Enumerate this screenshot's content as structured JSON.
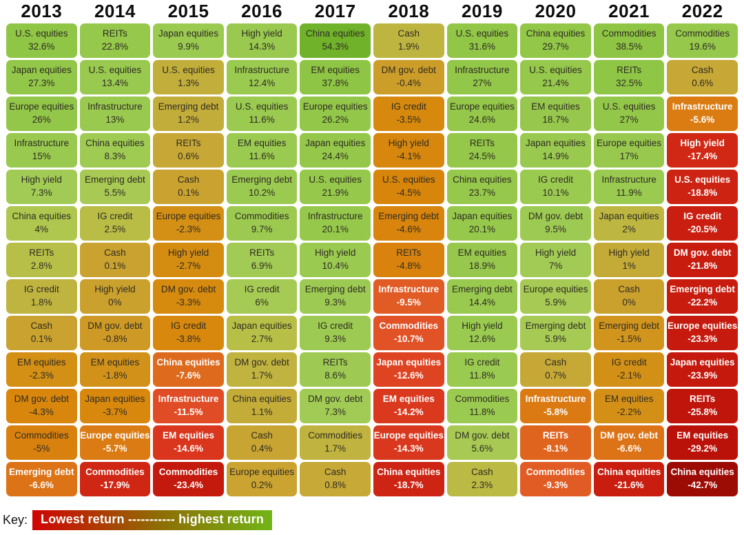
{
  "key": {
    "label": "Key:",
    "bar_text": "Lowest return ----------- highest return",
    "gradient": [
      "#d00404",
      "#8f6c04",
      "#72b517"
    ]
  },
  "chart_data": {
    "type": "heatmap",
    "legend": "red = lowest return, green = highest return",
    "columns": [
      {
        "year": "2013",
        "cells": [
          {
            "label": "U.S. equities",
            "value": 32.6,
            "display": "32.6%"
          },
          {
            "label": "Japan equities",
            "value": 27.3,
            "display": "27.3%"
          },
          {
            "label": "Europe equities",
            "value": 26,
            "display": "26%"
          },
          {
            "label": "Infrastructure",
            "value": 15,
            "display": "15%"
          },
          {
            "label": "High yield",
            "value": 7.3,
            "display": "7.3%"
          },
          {
            "label": "China equities",
            "value": 4,
            "display": "4%"
          },
          {
            "label": "REITs",
            "value": 2.8,
            "display": "2.8%"
          },
          {
            "label": "IG credit",
            "value": 1.8,
            "display": "1.8%"
          },
          {
            "label": "Cash",
            "value": 0.1,
            "display": "0.1%"
          },
          {
            "label": "EM equities",
            "value": -2.3,
            "display": "-2.3%"
          },
          {
            "label": "DM gov. debt",
            "value": -4.3,
            "display": "-4.3%"
          },
          {
            "label": "Commodities",
            "value": -5,
            "display": "-5%"
          },
          {
            "label": "Emerging debt",
            "value": -6.6,
            "display": "-6.6%"
          }
        ]
      },
      {
        "year": "2014",
        "cells": [
          {
            "label": "REITs",
            "value": 22.8,
            "display": "22.8%"
          },
          {
            "label": "U.S. equities",
            "value": 13.4,
            "display": "13.4%"
          },
          {
            "label": "Infrastructure",
            "value": 13,
            "display": "13%"
          },
          {
            "label": "China equities",
            "value": 8.3,
            "display": "8.3%"
          },
          {
            "label": "Emerging debt",
            "value": 5.5,
            "display": "5.5%"
          },
          {
            "label": "IG credit",
            "value": 2.5,
            "display": "2.5%"
          },
          {
            "label": "Cash",
            "value": 0.1,
            "display": "0.1%"
          },
          {
            "label": "High yield",
            "value": 0,
            "display": "0%"
          },
          {
            "label": "DM gov. debt",
            "value": -0.8,
            "display": "-0.8%"
          },
          {
            "label": "EM equities",
            "value": -1.8,
            "display": "-1.8%"
          },
          {
            "label": "Japan equities",
            "value": -3.7,
            "display": "-3.7%"
          },
          {
            "label": "Europe equities",
            "value": -5.7,
            "display": "-5.7%"
          },
          {
            "label": "Commodities",
            "value": -17.9,
            "display": "-17.9%"
          }
        ]
      },
      {
        "year": "2015",
        "cells": [
          {
            "label": "Japan equities",
            "value": 9.9,
            "display": "9.9%"
          },
          {
            "label": "U.S. equities",
            "value": 1.3,
            "display": "1.3%"
          },
          {
            "label": "Emerging debt",
            "value": 1.2,
            "display": "1.2%"
          },
          {
            "label": "REITs",
            "value": 0.6,
            "display": "0.6%"
          },
          {
            "label": "Cash",
            "value": 0.1,
            "display": "0.1%"
          },
          {
            "label": "Europe equities",
            "value": -2.3,
            "display": "-2.3%"
          },
          {
            "label": "High yield",
            "value": -2.7,
            "display": "-2.7%"
          },
          {
            "label": "DM gov. debt",
            "value": -3.3,
            "display": "-3.3%"
          },
          {
            "label": "IG credit",
            "value": -3.8,
            "display": "-3.8%"
          },
          {
            "label": "China equities",
            "value": -7.6,
            "display": "-7.6%"
          },
          {
            "label": "Infrastructure",
            "value": -11.5,
            "display": "-11.5%"
          },
          {
            "label": "EM equities",
            "value": -14.6,
            "display": "-14.6%"
          },
          {
            "label": "Commodities",
            "value": -23.4,
            "display": "-23.4%"
          }
        ]
      },
      {
        "year": "2016",
        "cells": [
          {
            "label": "High yield",
            "value": 14.3,
            "display": "14.3%"
          },
          {
            "label": "Infrastructure",
            "value": 12.4,
            "display": "12.4%"
          },
          {
            "label": "U.S. equities",
            "value": 11.6,
            "display": "11.6%"
          },
          {
            "label": "EM equities",
            "value": 11.6,
            "display": "11.6%"
          },
          {
            "label": "Emerging debt",
            "value": 10.2,
            "display": "10.2%"
          },
          {
            "label": "Commodities",
            "value": 9.7,
            "display": "9.7%"
          },
          {
            "label": "REITs",
            "value": 6.9,
            "display": "6.9%"
          },
          {
            "label": "IG credit",
            "value": 6,
            "display": "6%"
          },
          {
            "label": "Japan equities",
            "value": 2.7,
            "display": "2.7%"
          },
          {
            "label": "DM gov. debt",
            "value": 1.7,
            "display": "1.7%"
          },
          {
            "label": "China equities",
            "value": 1.1,
            "display": "1.1%"
          },
          {
            "label": "Cash",
            "value": 0.4,
            "display": "0.4%"
          },
          {
            "label": "Europe equities",
            "value": 0.2,
            "display": "0.2%"
          }
        ]
      },
      {
        "year": "2017",
        "cells": [
          {
            "label": "China equities",
            "value": 54.3,
            "display": "54.3%"
          },
          {
            "label": "EM equities",
            "value": 37.8,
            "display": "37.8%"
          },
          {
            "label": "Europe equities",
            "value": 26.2,
            "display": "26.2%"
          },
          {
            "label": "Japan equities",
            "value": 24.4,
            "display": "24.4%"
          },
          {
            "label": "U.S. equities",
            "value": 21.9,
            "display": "21.9%"
          },
          {
            "label": "Infrastructure",
            "value": 20.1,
            "display": "20.1%"
          },
          {
            "label": "High yield",
            "value": 10.4,
            "display": "10.4%"
          },
          {
            "label": "Emerging debt",
            "value": 9.3,
            "display": "9.3%"
          },
          {
            "label": "IG credit",
            "value": 9.3,
            "display": "9.3%"
          },
          {
            "label": "REITs",
            "value": 8.6,
            "display": "8.6%"
          },
          {
            "label": "DM gov. debt",
            "value": 7.3,
            "display": "7.3%"
          },
          {
            "label": "Commodities",
            "value": 1.7,
            "display": "1.7%"
          },
          {
            "label": "Cash",
            "value": 0.8,
            "display": "0.8%"
          }
        ]
      },
      {
        "year": "2018",
        "cells": [
          {
            "label": "Cash",
            "value": 1.9,
            "display": "1.9%"
          },
          {
            "label": "DM gov. debt",
            "value": -0.4,
            "display": "-0.4%"
          },
          {
            "label": "IG credit",
            "value": -3.5,
            "display": "-3.5%"
          },
          {
            "label": "High yield",
            "value": -4.1,
            "display": "-4.1%"
          },
          {
            "label": "U.S. equities",
            "value": -4.5,
            "display": "-4.5%"
          },
          {
            "label": "Emerging debt",
            "value": -4.6,
            "display": "-4.6%"
          },
          {
            "label": "REITs",
            "value": -4.8,
            "display": "-4.8%"
          },
          {
            "label": "Infrastructure",
            "value": -9.5,
            "display": "-9.5%"
          },
          {
            "label": "Commodities",
            "value": -10.7,
            "display": "-10.7%"
          },
          {
            "label": "Japan equities",
            "value": -12.6,
            "display": "-12.6%"
          },
          {
            "label": "EM equities",
            "value": -14.2,
            "display": "-14.2%"
          },
          {
            "label": "Europe equities",
            "value": -14.3,
            "display": "-14.3%"
          },
          {
            "label": "China equities",
            "value": -18.7,
            "display": "-18.7%"
          }
        ]
      },
      {
        "year": "2019",
        "cells": [
          {
            "label": "U.S. equities",
            "value": 31.6,
            "display": "31.6%"
          },
          {
            "label": "Infrastructure",
            "value": 27,
            "display": "27%"
          },
          {
            "label": "Europe equities",
            "value": 24.6,
            "display": "24.6%"
          },
          {
            "label": "REITs",
            "value": 24.5,
            "display": "24.5%"
          },
          {
            "label": "China equities",
            "value": 23.7,
            "display": "23.7%"
          },
          {
            "label": "Japan equities",
            "value": 20.1,
            "display": "20.1%"
          },
          {
            "label": "EM equities",
            "value": 18.9,
            "display": "18.9%"
          },
          {
            "label": "Emerging debt",
            "value": 14.4,
            "display": "14.4%"
          },
          {
            "label": "High yield",
            "value": 12.6,
            "display": "12.6%"
          },
          {
            "label": "IG credit",
            "value": 11.8,
            "display": "11.8%"
          },
          {
            "label": "Commodities",
            "value": 11.8,
            "display": "11.8%"
          },
          {
            "label": "DM gov. debt",
            "value": 5.6,
            "display": "5.6%"
          },
          {
            "label": "Cash",
            "value": 2.3,
            "display": "2.3%"
          }
        ]
      },
      {
        "year": "2020",
        "cells": [
          {
            "label": "China equities",
            "value": 29.7,
            "display": "29.7%"
          },
          {
            "label": "U.S. equities",
            "value": 21.4,
            "display": "21.4%"
          },
          {
            "label": "EM equities",
            "value": 18.7,
            "display": "18.7%"
          },
          {
            "label": "Japan equities",
            "value": 14.9,
            "display": "14.9%"
          },
          {
            "label": "IG credit",
            "value": 10.1,
            "display": "10.1%"
          },
          {
            "label": "DM gov. debt",
            "value": 9.5,
            "display": "9.5%"
          },
          {
            "label": "High yield",
            "value": 7,
            "display": "7%"
          },
          {
            "label": "Europe equities",
            "value": 5.9,
            "display": "5.9%"
          },
          {
            "label": "Emerging debt",
            "value": 5.9,
            "display": "5.9%"
          },
          {
            "label": "Cash",
            "value": 0.7,
            "display": "0.7%"
          },
          {
            "label": "Infrastructure",
            "value": -5.8,
            "display": "-5.8%"
          },
          {
            "label": "REITs",
            "value": -8.1,
            "display": "-8.1%"
          },
          {
            "label": "Commodities",
            "value": -9.3,
            "display": "-9.3%"
          }
        ]
      },
      {
        "year": "2021",
        "cells": [
          {
            "label": "Commodities",
            "value": 38.5,
            "display": "38.5%"
          },
          {
            "label": "REITs",
            "value": 32.5,
            "display": "32.5%"
          },
          {
            "label": "U.S. equities",
            "value": 27,
            "display": "27%"
          },
          {
            "label": "Europe equities",
            "value": 17,
            "display": "17%"
          },
          {
            "label": "Infrastructure",
            "value": 11.9,
            "display": "11.9%"
          },
          {
            "label": "Japan equities",
            "value": 2,
            "display": "2%"
          },
          {
            "label": "High yield",
            "value": 1,
            "display": "1%"
          },
          {
            "label": "Cash",
            "value": 0,
            "display": "0%"
          },
          {
            "label": "Emerging debt",
            "value": -1.5,
            "display": "-1.5%"
          },
          {
            "label": "IG credit",
            "value": -2.1,
            "display": "-2.1%"
          },
          {
            "label": "EM equities",
            "value": -2.2,
            "display": "-2.2%"
          },
          {
            "label": "DM gov. debt",
            "value": -6.6,
            "display": "-6.6%"
          },
          {
            "label": "China equities",
            "value": -21.6,
            "display": "-21.6%"
          }
        ]
      },
      {
        "year": "2022",
        "cells": [
          {
            "label": "Commodities",
            "value": 19.6,
            "display": "19.6%"
          },
          {
            "label": "Cash",
            "value": 0.6,
            "display": "0.6%"
          },
          {
            "label": "Infrastructure",
            "value": -5.6,
            "display": "-5.6%"
          },
          {
            "label": "High yield",
            "value": -17.4,
            "display": "-17.4%"
          },
          {
            "label": "U.S. equities",
            "value": -18.8,
            "display": "-18.8%"
          },
          {
            "label": "IG credit",
            "value": -20.5,
            "display": "-20.5%"
          },
          {
            "label": "DM gov. debt",
            "value": -21.8,
            "display": "-21.8%"
          },
          {
            "label": "Emerging debt",
            "value": -22.2,
            "display": "-22.2%"
          },
          {
            "label": "Europe equities",
            "value": -23.3,
            "display": "-23.3%"
          },
          {
            "label": "Japan equities",
            "value": -23.9,
            "display": "-23.9%"
          },
          {
            "label": "REITs",
            "value": -25.8,
            "display": "-25.8%"
          },
          {
            "label": "EM equities",
            "value": -29.2,
            "display": "-29.2%"
          },
          {
            "label": "China equities",
            "value": -42.7,
            "display": "-42.7%"
          }
        ]
      }
    ],
    "color_scale": [
      [
        54.3,
        "#70b32b"
      ],
      [
        44,
        "#8bc441"
      ],
      [
        10,
        "#9bca51"
      ],
      [
        7,
        "#a2cb55"
      ],
      [
        5,
        "#aaca53"
      ],
      [
        3.5,
        "#b2c54d"
      ],
      [
        2.5,
        "#b9bd46"
      ],
      [
        1.8,
        "#bfb440"
      ],
      [
        1.2,
        "#c3ad3a"
      ],
      [
        0.6,
        "#c7a735"
      ],
      [
        0,
        "#cba12e"
      ],
      [
        -1,
        "#cf9823"
      ],
      [
        -2,
        "#d39118"
      ],
      [
        -3,
        "#d68b0e"
      ],
      [
        -4.5,
        "#d8850c"
      ],
      [
        -5.5,
        "#da7d12"
      ],
      [
        -7,
        "#dd7019"
      ],
      [
        -8,
        "#df661f"
      ],
      [
        -9.5,
        "#e15b25"
      ],
      [
        -11,
        "#e15027"
      ],
      [
        -12.5,
        "#df4522"
      ],
      [
        -14.5,
        "#d9371d"
      ],
      [
        -16.5,
        "#d32c17"
      ],
      [
        -18.5,
        "#ce2413"
      ],
      [
        -20.5,
        "#ca1f10"
      ],
      [
        -23,
        "#c51a0d"
      ],
      [
        -26,
        "#c0150b"
      ],
      [
        -29.5,
        "#b91109"
      ],
      [
        -36,
        "#aa0e06"
      ],
      [
        -42.7,
        "#9c0c05"
      ]
    ],
    "text_rules": {
      "dark": "#2f2c22",
      "light": "#ffffff",
      "light_threshold": -5.3
    }
  }
}
